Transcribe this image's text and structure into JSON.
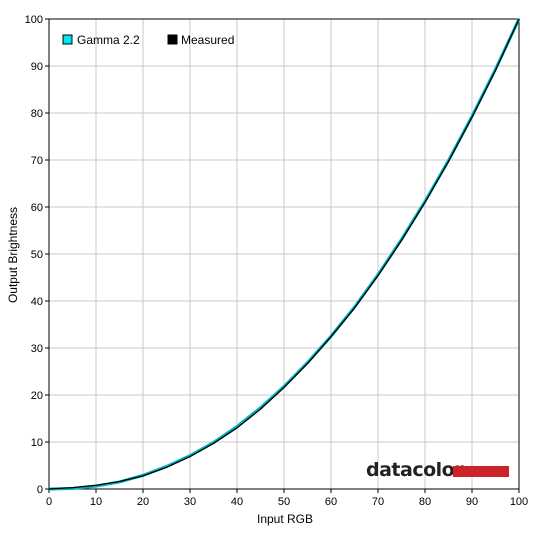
{
  "chart_data": {
    "type": "line",
    "title": "",
    "xlabel": "Input RGB",
    "ylabel": "Output Brightness",
    "xlim": [
      0,
      100
    ],
    "ylim": [
      0,
      100
    ],
    "x_ticks": [
      0,
      10,
      20,
      30,
      40,
      50,
      60,
      70,
      80,
      90,
      100
    ],
    "y_ticks": [
      0,
      10,
      20,
      30,
      40,
      50,
      60,
      70,
      80,
      90,
      100
    ],
    "grid": true,
    "legend_position": "top-left",
    "x": [
      0,
      5,
      10,
      15,
      20,
      25,
      30,
      35,
      40,
      45,
      50,
      55,
      60,
      65,
      70,
      75,
      80,
      85,
      90,
      95,
      100
    ],
    "series": [
      {
        "name": "Gamma 2.2",
        "color": "#00b3bf",
        "values": [
          0,
          0.1,
          0.6,
          1.5,
          2.9,
          4.8,
          7.1,
          9.9,
          13.3,
          17.3,
          21.8,
          26.9,
          32.5,
          38.7,
          45.6,
          53.1,
          61.2,
          69.9,
          79.3,
          89.3,
          100
        ]
      },
      {
        "name": "Measured",
        "color": "#000000",
        "values": [
          0,
          0.3,
          0.8,
          1.6,
          2.8,
          4.6,
          6.9,
          9.7,
          13.0,
          17.0,
          21.6,
          26.7,
          32.4,
          38.5,
          45.4,
          52.9,
          61.0,
          69.7,
          79.1,
          89.1,
          100
        ]
      }
    ]
  },
  "branding": {
    "logo_text": "datacolor",
    "logo_bar_color": "#cc2229"
  }
}
